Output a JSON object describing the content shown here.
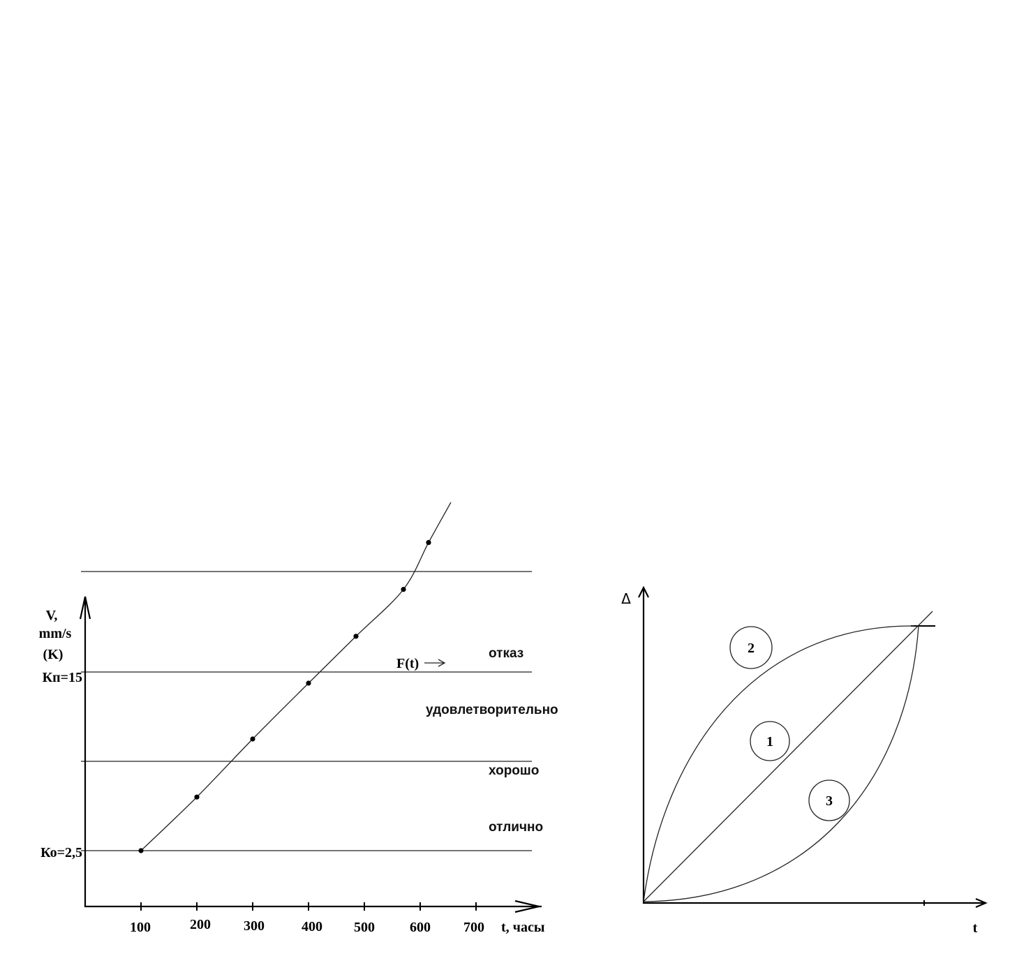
{
  "chart_data": [
    {
      "type": "line",
      "x_unit_label": "t, часы",
      "y_label_lines": [
        "V,",
        "mm/s",
        "(K)"
      ],
      "x_ticks": [
        100,
        200,
        300,
        400,
        500,
        600,
        700
      ],
      "xlim": [
        0,
        800
      ],
      "ylim": [
        0,
        20
      ],
      "thresholds": [
        {
          "label": "Ко=2,5",
          "value": 2.5
        },
        {
          "label": "",
          "value": 6.5
        },
        {
          "label": "",
          "value": 10.5
        },
        {
          "label": "Кп=15",
          "value": 15
        }
      ],
      "zones": [
        "отлично",
        "хорошо",
        "удовлетворительно",
        "отказ"
      ],
      "series": [
        {
          "name": "F(t)",
          "x": [
            100,
            200,
            300,
            400,
            485,
            570,
            615,
            655
          ],
          "y": [
            2.5,
            4.9,
            7.5,
            10.0,
            12.1,
            14.2,
            16.3,
            18.1
          ]
        }
      ],
      "grid": false
    },
    {
      "type": "line",
      "y_label": "Δ",
      "x_label": "t",
      "xlim": [
        0,
        1
      ],
      "ylim": [
        0,
        1
      ],
      "series": [
        {
          "name": "1",
          "shape": "linear"
        },
        {
          "name": "2",
          "shape": "concave"
        },
        {
          "name": "3",
          "shape": "convex"
        }
      ],
      "grid": false
    }
  ]
}
